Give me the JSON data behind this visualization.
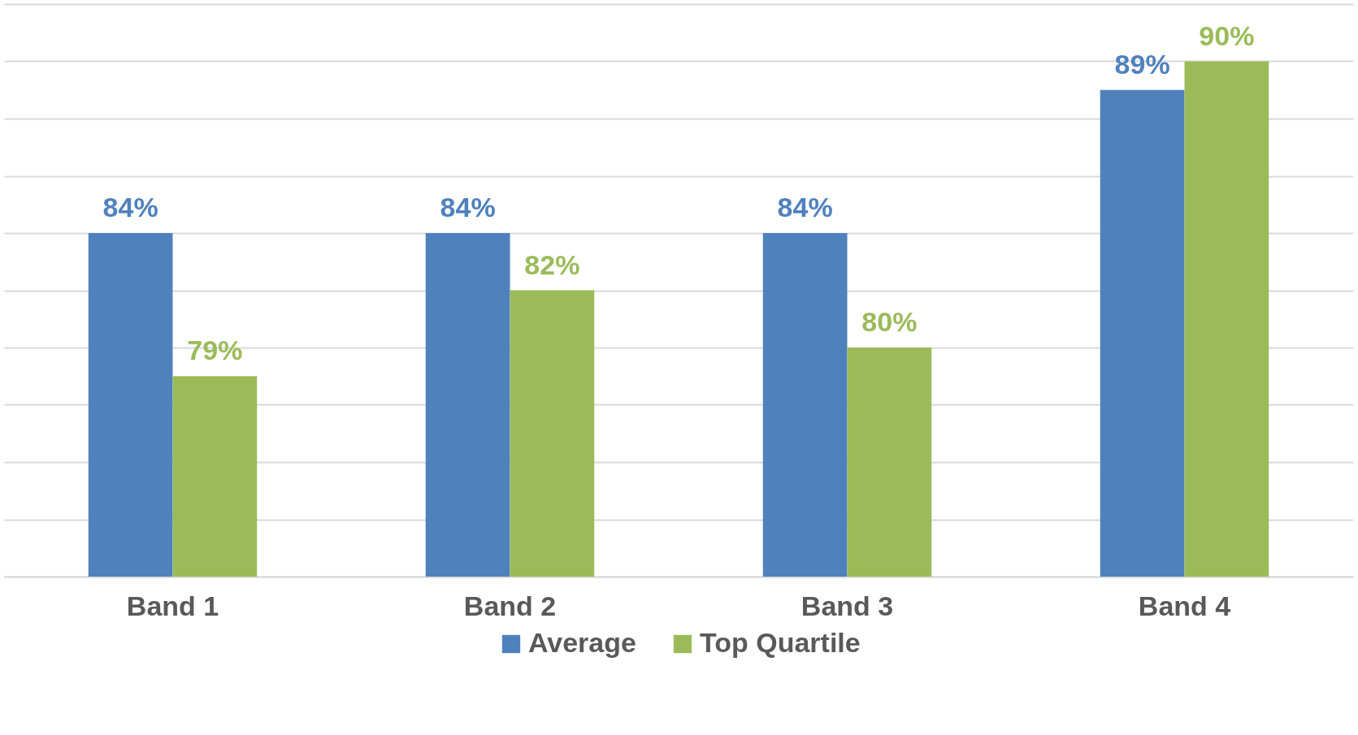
{
  "chart_data": {
    "type": "bar",
    "categories": [
      "Band 1",
      "Band 2",
      "Band 3",
      "Band 4"
    ],
    "series": [
      {
        "name": "Average",
        "color": "#4f81bd",
        "values": [
          84,
          84,
          84,
          89
        ],
        "value_labels": [
          "84%",
          "84%",
          "84%",
          "89%"
        ]
      },
      {
        "name": "Top Quartile",
        "color": "#9bbb59",
        "values": [
          79,
          82,
          80,
          90
        ],
        "value_labels": [
          "79%",
          "82%",
          "80%",
          "90%"
        ]
      }
    ],
    "ylim": [
      72,
      92
    ],
    "grid": "y",
    "tick_labels": "x",
    "legend": "bottom"
  }
}
